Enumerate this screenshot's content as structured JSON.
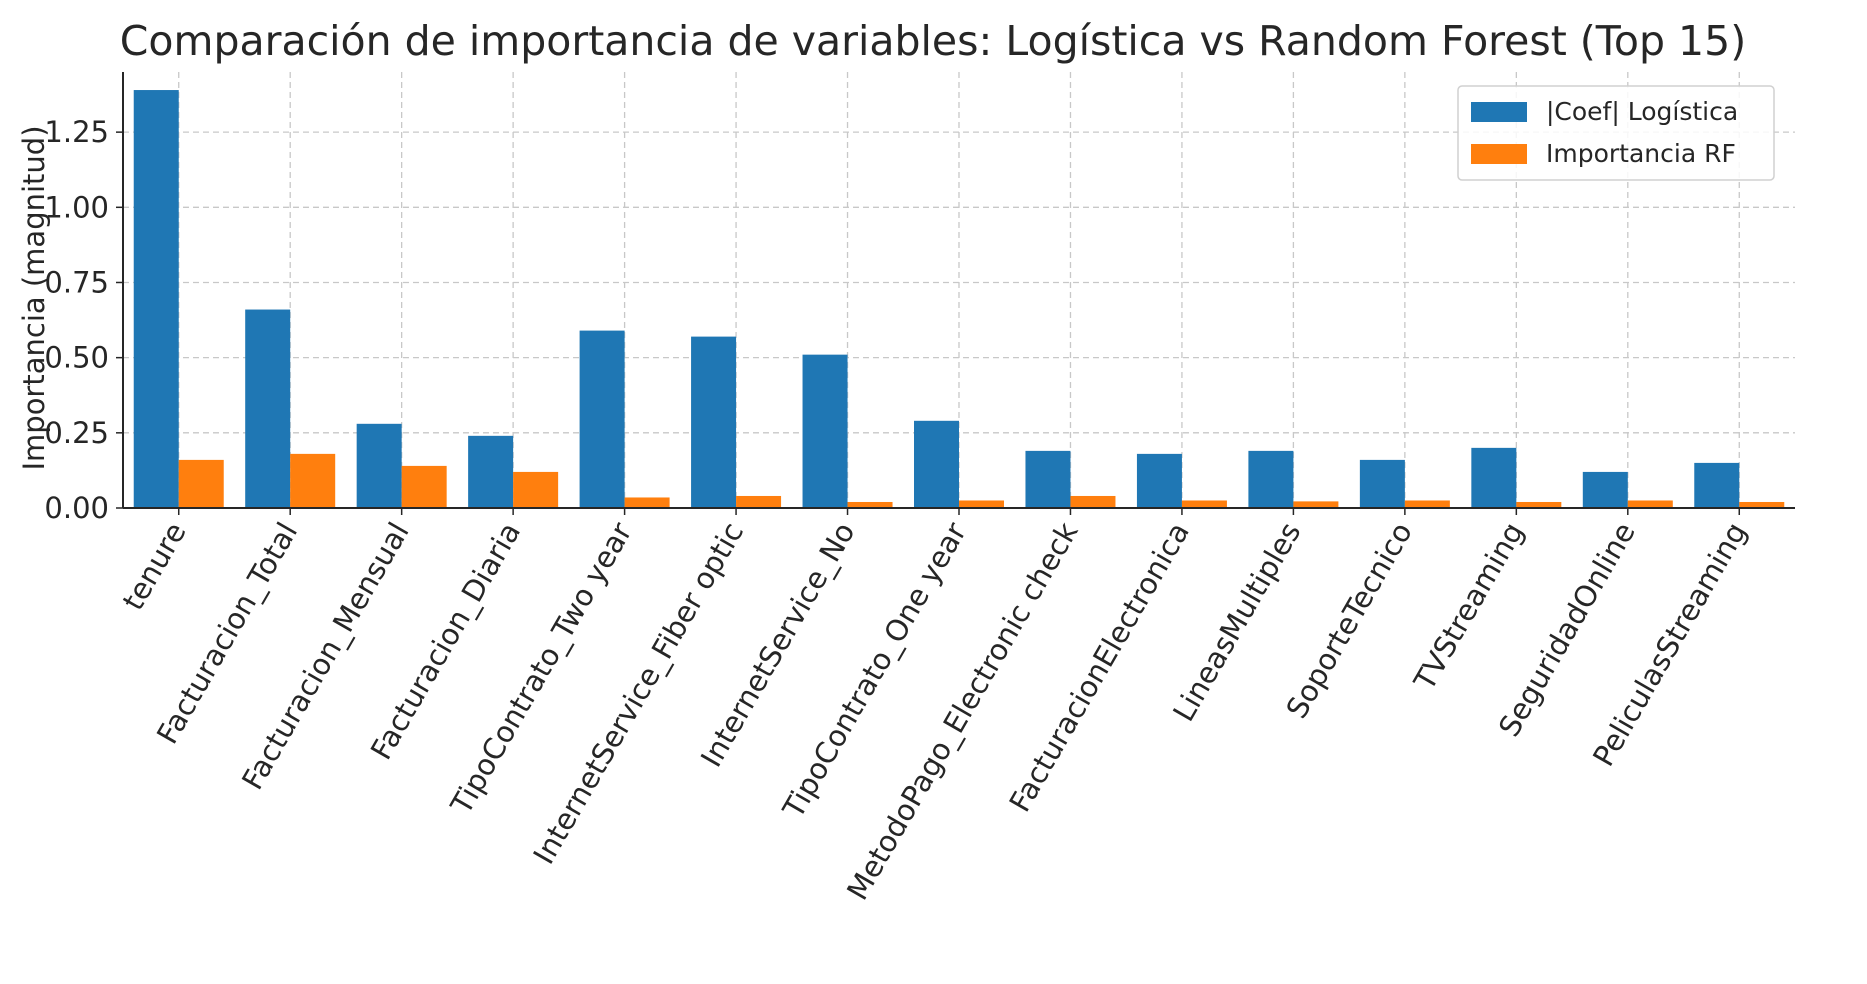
{
  "chart_data": {
    "type": "bar",
    "title": "Comparación de importancia de variables: Logística vs Random Forest (Top 15)",
    "xlabel": "",
    "ylabel": "Importancia (magnitud)",
    "ylim": [
      0,
      1.45
    ],
    "yticks": [
      "0.00",
      "0.25",
      "0.50",
      "0.75",
      "1.00",
      "1.25"
    ],
    "grid": true,
    "legend_position": "top-right",
    "categories": [
      "tenure",
      "Facturacion_Total",
      "Facturacion_Mensual",
      "Facturacion_Diaria",
      "TipoContrato_Two year",
      "InternetService_Fiber optic",
      "InternetService_No",
      "TipoContrato_One year",
      "MetodoPago_Electronic check",
      "FacturacionElectronica",
      "LineasMultiples",
      "SoporteTecnico",
      "TVStreaming",
      "SeguridadOnline",
      "PeliculasStreaming"
    ],
    "series": [
      {
        "name": "|Coef| Logística",
        "color": "#1f77b4",
        "values": [
          1.39,
          0.66,
          0.28,
          0.24,
          0.59,
          0.57,
          0.51,
          0.29,
          0.19,
          0.18,
          0.19,
          0.16,
          0.2,
          0.12,
          0.15
        ]
      },
      {
        "name": "Importancia RF",
        "color": "#ff7f0e",
        "values": [
          0.16,
          0.18,
          0.14,
          0.12,
          0.035,
          0.04,
          0.02,
          0.025,
          0.04,
          0.025,
          0.022,
          0.025,
          0.02,
          0.025,
          0.02
        ]
      }
    ]
  }
}
